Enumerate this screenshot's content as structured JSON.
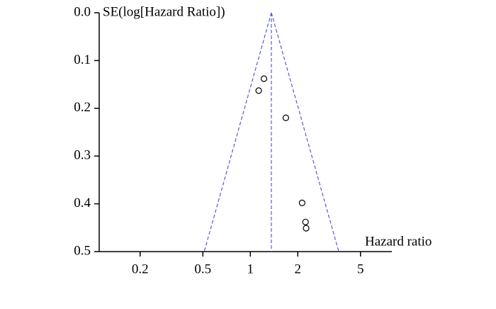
{
  "chart_data": {
    "type": "scatter",
    "xscale": "log",
    "y_label": "SE(log[Hazard Ratio])",
    "x_label": "Hazard ratio",
    "x": [
      1.22,
      1.13,
      1.68,
      2.13,
      2.24,
      2.26
    ],
    "y": [
      0.138,
      0.163,
      0.22,
      0.398,
      0.438,
      0.451
    ],
    "color": "#000000",
    "lines": [
      {
        "x": [
          1.36,
          0.51
        ],
        "y": [
          0,
          0.5
        ]
      },
      {
        "x": [
          1.36,
          3.64
        ],
        "y": [
          0,
          0.5
        ]
      },
      {
        "x": [
          1.36,
          1.36
        ],
        "y": [
          0,
          0.5
        ]
      }
    ],
    "line_color": "#5a5ad0",
    "xlim": [
      0.11,
      7.9
    ],
    "ylim": [
      0.5,
      0
    ],
    "xticks": [
      0.2,
      0.5,
      1,
      2,
      5
    ],
    "yticks": [
      {
        "value": 0,
        "label": "0.0"
      },
      0.1,
      0.2,
      0.3,
      0.4,
      0.5
    ]
  }
}
